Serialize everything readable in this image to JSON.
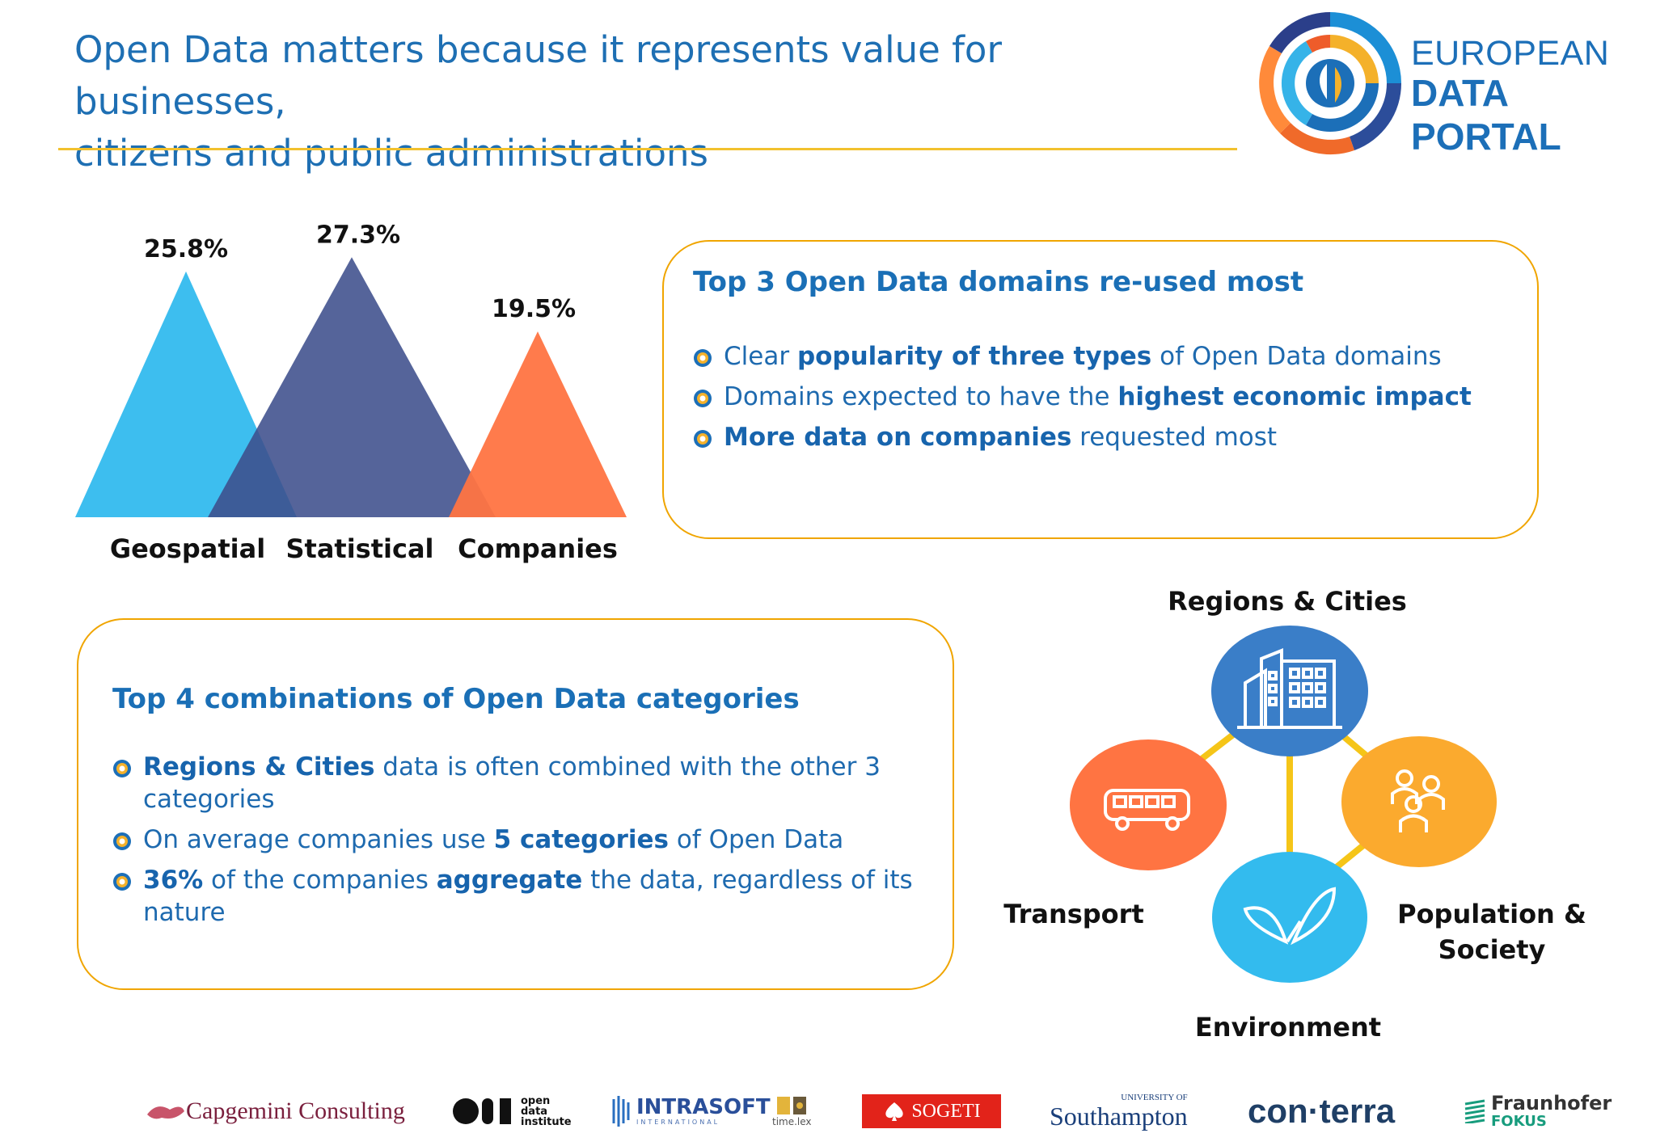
{
  "header": {
    "title_line1": "Open Data matters because it represents value for businesses,",
    "title_line2": "citizens and public administrations",
    "logo_line1": "EUROPEAN",
    "logo_line2": "DATA PORTAL"
  },
  "chart_data": {
    "type": "area",
    "categories": [
      "Geospatial",
      "Statistical",
      "Companies"
    ],
    "values": [
      25.8,
      27.3,
      19.5
    ],
    "value_labels": [
      "25.8%",
      "27.3%",
      "19.5%"
    ],
    "colors": [
      "#33bbee",
      "#3d4f8c",
      "#ff7442"
    ]
  },
  "domains_box": {
    "heading": "Top 3 Open Data domains re-used most",
    "bullets": [
      {
        "pre": "Clear ",
        "bold": "popularity of three types",
        "post": " of Open Data domains"
      },
      {
        "pre": "Domains expected to have the ",
        "bold": "highest economic impact",
        "post": ""
      },
      {
        "pre": "",
        "bold": "More data on companies",
        "post": " requested most"
      }
    ]
  },
  "categories_box": {
    "heading": "Top 4 combinations of Open Data categories",
    "bullets": [
      {
        "pre": "",
        "bold": "Regions & Cities",
        "mid": " data is often combined with the other 3 categories",
        "bold2": "",
        "post": ""
      },
      {
        "pre": "On average companies use ",
        "bold": "5 categories",
        "mid": " of Open Data",
        "bold2": "",
        "post": ""
      },
      {
        "pre": "",
        "bold": "36%",
        "mid": " of the companies ",
        "bold2": "aggregate",
        "post": " the data, regardless of its nature"
      }
    ]
  },
  "network": {
    "regions": "Regions & Cities",
    "transport": "Transport",
    "population_line1": "Population &",
    "population_line2": "Society",
    "environment": "Environment",
    "colors": {
      "regions": "#3a7ec8",
      "transport": "#ff7442",
      "population": "#fbaa2e",
      "environment": "#33bbee",
      "link": "#f5c518"
    },
    "icons": {
      "regions": "buildings-icon",
      "transport": "bus-icon",
      "population": "people-icon",
      "environment": "leaf-icon"
    }
  },
  "partners": [
    "Capgemini Consulting",
    "open data institute",
    "INTRASOFT",
    "INTERNATIONAL",
    "time.lex",
    "SOGETI",
    "UNIVERSITY OF",
    "Southampton",
    "con·terra",
    "Fraunhofer",
    "FOKUS"
  ]
}
